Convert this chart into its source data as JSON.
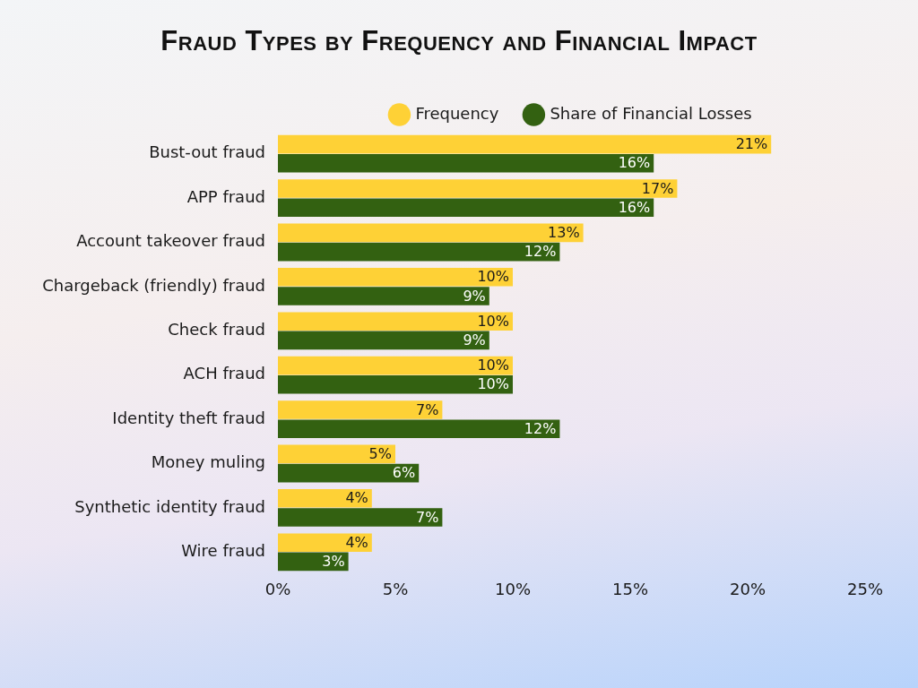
{
  "chart_data": {
    "type": "bar",
    "orientation": "horizontal",
    "title": "Fraud Types by Frequency and Financial Impact",
    "categories": [
      "Bust-out fraud",
      "APP fraud",
      "Account takeover fraud",
      "Chargeback (friendly) fraud",
      "Check fraud",
      "ACH fraud",
      "Identity theft fraud",
      "Money muling",
      "Synthetic identity fraud",
      "Wire fraud"
    ],
    "series": [
      {
        "name": "Frequency",
        "color": "#fed136",
        "values": [
          21,
          17,
          13,
          10,
          10,
          10,
          7,
          5,
          4,
          4
        ],
        "value_labels": [
          "21%",
          "17%",
          "13%",
          "10%",
          "10%",
          "10%",
          "7%",
          "5%",
          "4%",
          "4%"
        ]
      },
      {
        "name": "Share of Financial Losses",
        "color": "#336111",
        "values": [
          16,
          16,
          12,
          9,
          9,
          10,
          12,
          6,
          7,
          3
        ],
        "value_labels": [
          "16%",
          "16%",
          "12%",
          "9%",
          "9%",
          "10%",
          "12%",
          "6%",
          "7%",
          "3%"
        ]
      }
    ],
    "xlim": [
      0,
      25
    ],
    "xticks": [
      {
        "value": 0,
        "label": "0%"
      },
      {
        "value": 5,
        "label": "5%"
      },
      {
        "value": 10,
        "label": "10%"
      },
      {
        "value": 15,
        "label": "15%"
      },
      {
        "value": 20,
        "label": "20%"
      },
      {
        "value": 25,
        "label": "25%"
      }
    ],
    "grid": false,
    "legend": "top"
  }
}
